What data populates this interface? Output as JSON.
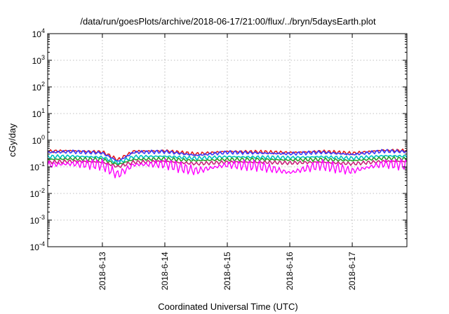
{
  "chart_data": {
    "type": "line",
    "title": "/data/run/goesPlots/archive/2018-06-17/21:00/flux/../bryn/5daysEarth.plot",
    "xlabel": "Coordinated Universal Time (UTC)",
    "ylabel": "cGy/day",
    "yscale": "log",
    "ylim": [
      0.0001,
      10000
    ],
    "xlim": [
      "2018-06-12 03:00",
      "2018-06-17 21:00"
    ],
    "grid": true,
    "x_ticks": [
      "2018-6-13",
      "2018-6-14",
      "2018-6-15",
      "2018-6-16",
      "2018-6-17"
    ],
    "y_ticks": [
      {
        "base": "10",
        "exp": "-4"
      },
      {
        "base": "10",
        "exp": "-3"
      },
      {
        "base": "10",
        "exp": "-2"
      },
      {
        "base": "10",
        "exp": "-1"
      },
      {
        "base": "10",
        "exp": "0"
      },
      {
        "base": "10",
        "exp": "1"
      },
      {
        "base": "10",
        "exp": "2"
      },
      {
        "base": "10",
        "exp": "3"
      },
      {
        "base": "10",
        "exp": "4"
      }
    ],
    "x": [
      "2018-06-12 03:00",
      "2018-06-12 12:00",
      "2018-06-13 00:00",
      "2018-06-13 06:00",
      "2018-06-13 12:00",
      "2018-06-14 00:00",
      "2018-06-14 12:00",
      "2018-06-15 00:00",
      "2018-06-15 12:00",
      "2018-06-16 00:00",
      "2018-06-16 12:00",
      "2018-06-17 00:00",
      "2018-06-17 12:00",
      "2018-06-17 21:00"
    ],
    "series": [
      {
        "color": "#e41a1c",
        "values": [
          0.38,
          0.4,
          0.36,
          0.18,
          0.38,
          0.4,
          0.3,
          0.38,
          0.36,
          0.34,
          0.38,
          0.32,
          0.42,
          0.4
        ]
      },
      {
        "color": "#3a3aff",
        "values": [
          0.35,
          0.37,
          0.33,
          0.16,
          0.35,
          0.37,
          0.27,
          0.35,
          0.33,
          0.31,
          0.35,
          0.29,
          0.39,
          0.37
        ]
      },
      {
        "color": "#00c0c0",
        "values": [
          0.24,
          0.25,
          0.23,
          0.14,
          0.24,
          0.25,
          0.21,
          0.24,
          0.23,
          0.22,
          0.24,
          0.21,
          0.26,
          0.25
        ]
      },
      {
        "color": "#2ca02c",
        "values": [
          0.19,
          0.2,
          0.19,
          0.12,
          0.19,
          0.2,
          0.17,
          0.19,
          0.19,
          0.18,
          0.19,
          0.17,
          0.21,
          0.2
        ]
      },
      {
        "color": "#c8247a",
        "values": [
          0.15,
          0.16,
          0.15,
          0.1,
          0.15,
          0.16,
          0.13,
          0.15,
          0.15,
          0.14,
          0.15,
          0.13,
          0.16,
          0.16
        ]
      },
      {
        "color": "#ff00ff",
        "values": [
          0.12,
          0.13,
          0.12,
          0.05,
          0.12,
          0.13,
          0.07,
          0.12,
          0.11,
          0.06,
          0.12,
          0.07,
          0.13,
          0.12
        ]
      }
    ]
  }
}
